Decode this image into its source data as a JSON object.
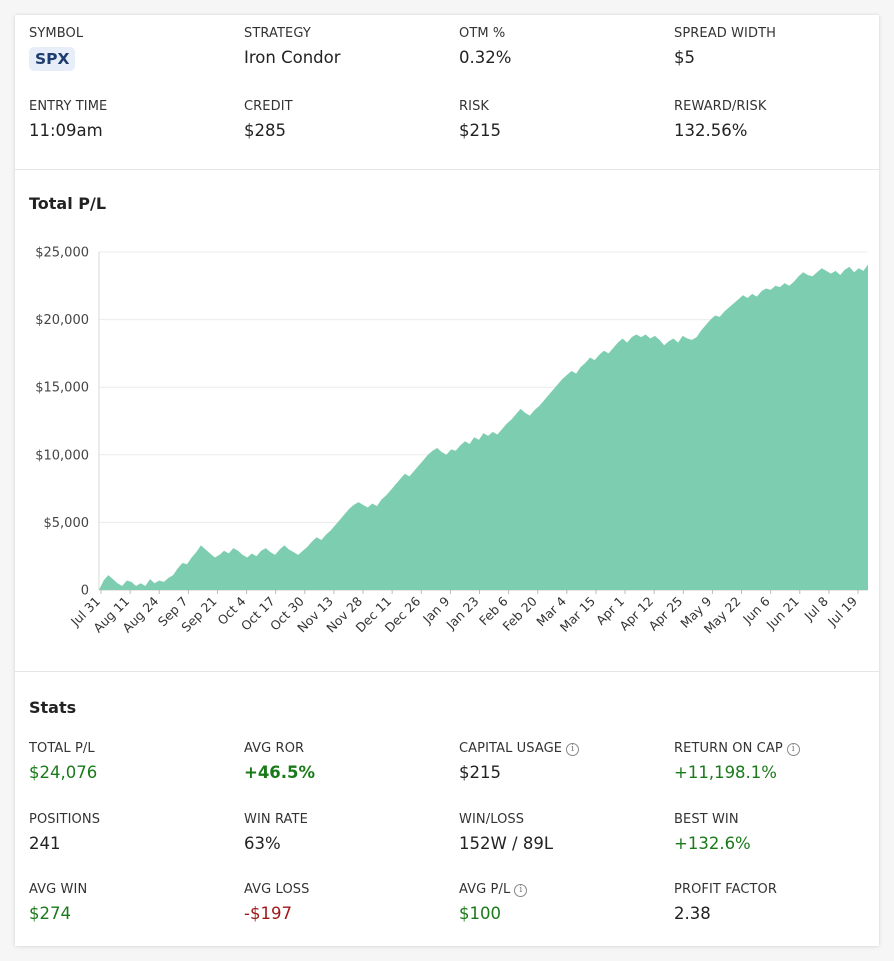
{
  "summary": {
    "symbol": {
      "label": "SYMBOL",
      "value": "SPX"
    },
    "strategy": {
      "label": "STRATEGY",
      "value": "Iron Condor"
    },
    "otm": {
      "label": "OTM %",
      "value": "0.32%"
    },
    "spread_width": {
      "label": "SPREAD WIDTH",
      "value": "$5"
    },
    "entry_time": {
      "label": "ENTRY TIME",
      "value": "11:09am"
    },
    "credit": {
      "label": "CREDIT",
      "value": "$285"
    },
    "risk": {
      "label": "RISK",
      "value": "$215"
    },
    "reward_risk": {
      "label": "REWARD/RISK",
      "value": "132.56%"
    }
  },
  "chart_section": {
    "title": "Total P/L"
  },
  "chart_data": {
    "type": "area",
    "title": "Total P/L",
    "color": "#7dcdb1",
    "y_ticks": [
      "$25,000",
      "$20,000",
      "$15,000",
      "$10,000",
      "$5,000",
      "0"
    ],
    "y_tick_values": [
      25000,
      20000,
      15000,
      10000,
      5000,
      0
    ],
    "ylim": [
      0,
      25000
    ],
    "grid": true,
    "x_ticks": [
      "Jul 31",
      "Aug 11",
      "Aug 24",
      "Sep 7",
      "Sep 21",
      "Oct 4",
      "Oct 17",
      "Oct 30",
      "Nov 13",
      "Nov 28",
      "Dec 11",
      "Dec 26",
      "Jan 9",
      "Jan 23",
      "Feb 6",
      "Feb 20",
      "Mar 4",
      "Mar 15",
      "Apr 1",
      "Apr 12",
      "Apr 25",
      "May 9",
      "May 22",
      "Jun 6",
      "Jun 21",
      "Jul 8",
      "Jul 19"
    ],
    "values": [
      0,
      700,
      1100,
      800,
      500,
      300,
      700,
      600,
      300,
      500,
      300,
      800,
      500,
      700,
      600,
      900,
      1100,
      1600,
      2000,
      1900,
      2400,
      2800,
      3300,
      3000,
      2700,
      2400,
      2600,
      2900,
      2700,
      3100,
      2900,
      2600,
      2400,
      2700,
      2500,
      2900,
      3100,
      2800,
      2600,
      3000,
      3300,
      3000,
      2800,
      2600,
      2900,
      3200,
      3600,
      3900,
      3700,
      4100,
      4400,
      4800,
      5200,
      5600,
      6000,
      6300,
      6500,
      6300,
      6100,
      6400,
      6200,
      6700,
      7000,
      7400,
      7800,
      8200,
      8600,
      8400,
      8800,
      9200,
      9600,
      10000,
      10300,
      10500,
      10200,
      10000,
      10400,
      10300,
      10700,
      11000,
      10800,
      11300,
      11100,
      11600,
      11400,
      11700,
      11500,
      11900,
      12300,
      12600,
      13000,
      13400,
      13100,
      12900,
      13300,
      13600,
      14000,
      14400,
      14800,
      15200,
      15600,
      15900,
      16200,
      16000,
      16500,
      16800,
      17200,
      17000,
      17400,
      17700,
      17500,
      17900,
      18300,
      18600,
      18300,
      18700,
      18900,
      18700,
      18900,
      18600,
      18800,
      18500,
      18100,
      18400,
      18600,
      18300,
      18800,
      18600,
      18500,
      18700,
      19200,
      19600,
      20000,
      20300,
      20200,
      20600,
      20900,
      21200,
      21500,
      21800,
      21600,
      21900,
      21700,
      22100,
      22300,
      22200,
      22500,
      22400,
      22700,
      22500,
      22800,
      23200,
      23500,
      23300,
      23200,
      23500,
      23800,
      23600,
      23400,
      23600,
      23300,
      23700,
      23900,
      23500,
      23800,
      23600,
      24076
    ]
  },
  "stats": {
    "title": "Stats",
    "total_pl": {
      "label": "TOTAL P/L",
      "value": "$24,076"
    },
    "avg_ror": {
      "label": "AVG ROR",
      "value": "+46.5%"
    },
    "capital_usage": {
      "label": "CAPITAL USAGE",
      "value": "$215",
      "info_icon": "info-icon"
    },
    "return_on_cap": {
      "label": "RETURN ON CAP",
      "value": "+11,198.1%",
      "info_icon": "info-icon"
    },
    "positions": {
      "label": "POSITIONS",
      "value": "241"
    },
    "win_rate": {
      "label": "WIN RATE",
      "value": "63%"
    },
    "win_loss": {
      "label": "WIN/LOSS",
      "value": "152W / 89L"
    },
    "best_win": {
      "label": "BEST WIN",
      "value": "+132.6%"
    },
    "avg_win": {
      "label": "AVG WIN",
      "value": "$274"
    },
    "avg_loss": {
      "label": "AVG LOSS",
      "value": "-$197"
    },
    "avg_pl": {
      "label": "AVG P/L",
      "value": "$100",
      "info_icon": "info-icon"
    },
    "profit_factor": {
      "label": "PROFIT FACTOR",
      "value": "2.38"
    }
  },
  "colors": {
    "positive": "#1a7a1a",
    "negative": "#a01818",
    "area": "#7dcdb1",
    "pill_bg": "#e7eef9"
  }
}
